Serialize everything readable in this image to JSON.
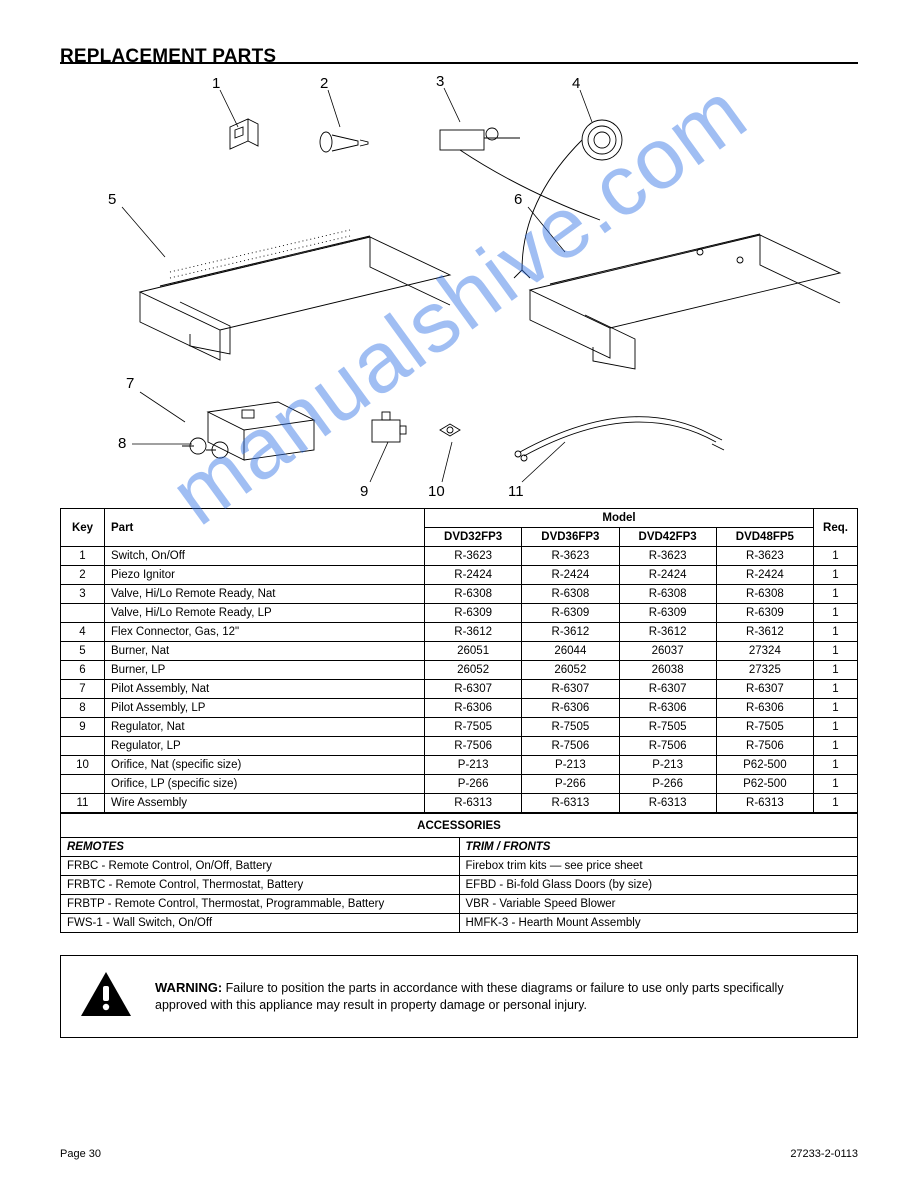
{
  "title": "REPLACEMENT PARTS",
  "diagram": {
    "callouts": {
      "c1": "1",
      "c2": "2",
      "c3": "3",
      "c4": "4",
      "c5": "5",
      "c6": "6",
      "c7": "7",
      "c8": "8",
      "c9": "9",
      "c10": "10",
      "c11": "11"
    },
    "line_stroke": "#000000",
    "line_width": 0.8
  },
  "watermark": "manualshive.com",
  "parts_table": {
    "headers": {
      "key": "Key",
      "part": "Part",
      "model_group": "Model",
      "models": [
        "DVD32FP3",
        "DVD36FP3",
        "DVD42FP3",
        "DVD48FP5"
      ],
      "qty": "Req."
    },
    "rows": [
      {
        "key": "1",
        "part": "Switch, On/Off",
        "cells": [
          "R-3623",
          "R-3623",
          "R-3623",
          "R-3623"
        ],
        "qty": "1"
      },
      {
        "key": "2",
        "part": "Piezo Ignitor",
        "cells": [
          "R-2424",
          "R-2424",
          "R-2424",
          "R-2424"
        ],
        "qty": "1"
      },
      {
        "key": "3",
        "part": "Valve, Hi/Lo Remote Ready, Nat",
        "cells": [
          "R-6308",
          "R-6308",
          "R-6308",
          "R-6308"
        ],
        "qty": "1"
      },
      {
        "key": "",
        "part": "Valve, Hi/Lo Remote Ready, LP",
        "cells": [
          "R-6309",
          "R-6309",
          "R-6309",
          "R-6309"
        ],
        "qty": "1"
      },
      {
        "key": "4",
        "part": "Flex Connector, Gas, 12\"",
        "cells": [
          "R-3612",
          "R-3612",
          "R-3612",
          "R-3612"
        ],
        "qty": "1"
      },
      {
        "key": "5",
        "part": "Burner, Nat",
        "cells": [
          "26051",
          "26044",
          "26037",
          "27324"
        ],
        "qty": "1"
      },
      {
        "key": "6",
        "part": "Burner, LP",
        "cells": [
          "26052",
          "26052",
          "26038",
          "27325"
        ],
        "qty": "1"
      },
      {
        "key": "7",
        "part": "Pilot Assembly, Nat",
        "cells": [
          "R-6307",
          "R-6307",
          "R-6307",
          "R-6307"
        ],
        "qty": "1"
      },
      {
        "key": "8",
        "part": "Pilot Assembly, LP",
        "cells": [
          "R-6306",
          "R-6306",
          "R-6306",
          "R-6306"
        ],
        "qty": "1"
      },
      {
        "key": "9",
        "part": "Regulator, Nat",
        "cells": [
          "R-7505",
          "R-7505",
          "R-7505",
          "R-7505"
        ],
        "qty": "1"
      },
      {
        "key": "",
        "part": "Regulator, LP",
        "cells": [
          "R-7506",
          "R-7506",
          "R-7506",
          "R-7506"
        ],
        "qty": "1"
      },
      {
        "key": "10",
        "part": "Orifice, Nat (specific size)",
        "cells": [
          "P-213",
          "P-213",
          "P-213",
          "P62-500"
        ],
        "qty": "1"
      },
      {
        "key": "",
        "part": "Orifice, LP (specific size)",
        "cells": [
          "P-266",
          "P-266",
          "P-266",
          "P62-500"
        ],
        "qty": "1"
      },
      {
        "key": "11",
        "part": "Wire Assembly",
        "cells": [
          "R-6313",
          "R-6313",
          "R-6313",
          "R-6313"
        ],
        "qty": "1"
      }
    ]
  },
  "accessories": {
    "header": "ACCESSORIES",
    "subheads": {
      "remotes": "REMOTES",
      "trim": "TRIM / FRONTS"
    },
    "remotes": [
      "FRBC - Remote Control, On/Off, Battery",
      "FRBTC - Remote Control, Thermostat, Battery",
      "FRBTP - Remote Control, Thermostat, Programmable, Battery",
      "FWS-1 - Wall Switch, On/Off"
    ],
    "trim": [
      "Firebox trim kits — see price sheet",
      "EFBD - Bi-fold Glass Doors (by size)",
      "VBR - Variable Speed Blower",
      "HMFK-3 - Hearth Mount Assembly"
    ]
  },
  "warning": {
    "label": "WARNING:",
    "body": "Failure to position the parts in accordance with these diagrams or failure to use only parts specifically approved with this appliance may result in property damage or personal injury."
  },
  "footer_left": "Page 30",
  "footer_right": "27233-2-0113"
}
